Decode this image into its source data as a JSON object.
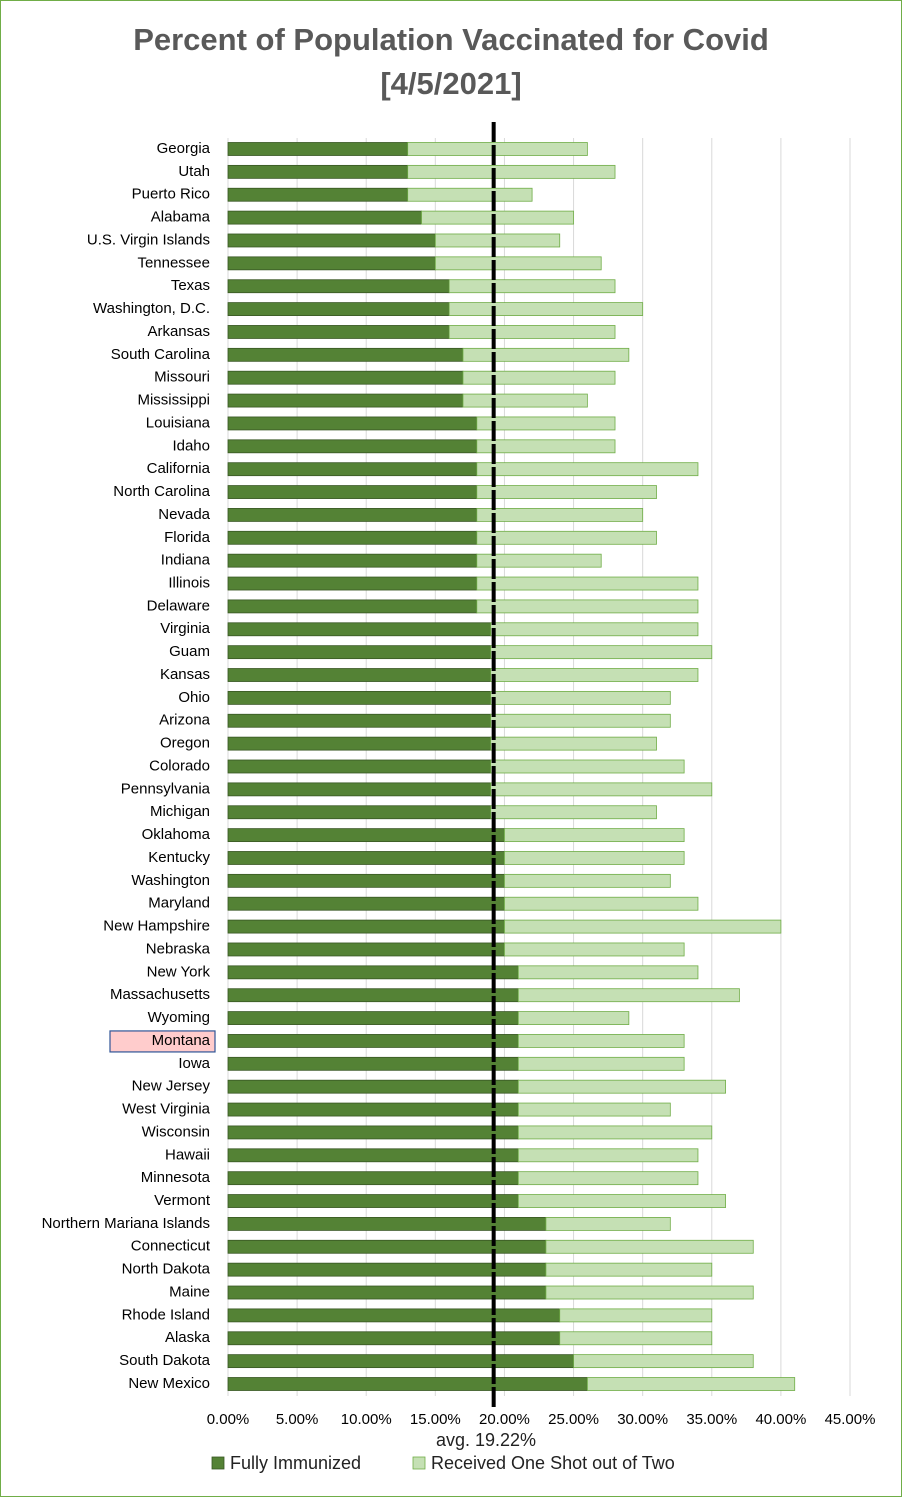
{
  "chart_data": {
    "type": "stacked_barh",
    "title": "Percent of Population Vaccinated for Covid",
    "subtitle": "[4/5/2021]",
    "categories": [
      "Georgia",
      "Utah",
      "Puerto Rico",
      "Alabama",
      "U.S. Virgin Islands",
      "Tennessee",
      "Texas",
      "Washington, D.C.",
      "Arkansas",
      "South Carolina",
      "Missouri",
      "Mississippi",
      "Louisiana",
      "Idaho",
      "California",
      "North Carolina",
      "Nevada",
      "Florida",
      "Indiana",
      "Illinois",
      "Delaware",
      "Virginia",
      "Guam",
      "Kansas",
      "Ohio",
      "Arizona",
      "Oregon",
      "Colorado",
      "Pennsylvania",
      "Michigan",
      "Oklahoma",
      "Kentucky",
      "Washington",
      "Maryland",
      "New Hampshire",
      "Nebraska",
      "New York",
      "Massachusetts",
      "Wyoming",
      "Montana",
      "Iowa",
      "New Jersey",
      "West Virginia",
      "Wisconsin",
      "Hawaii",
      "Minnesota",
      "Vermont",
      "Northern Mariana Islands",
      "Connecticut",
      "North Dakota",
      "Maine",
      "Rhode Island",
      "Alaska",
      "South Dakota",
      "New Mexico"
    ],
    "series": [
      {
        "name": "Fully Immunized",
        "color": "#548235",
        "edge": "#385723",
        "values": [
          13,
          13,
          13,
          14,
          15,
          15,
          16,
          16,
          16,
          17,
          17,
          17,
          18,
          18,
          18,
          18,
          18,
          18,
          18,
          18,
          18,
          19,
          19,
          19,
          19,
          19,
          19,
          19,
          19,
          19,
          20,
          20,
          20,
          20,
          20,
          20,
          21,
          21,
          21,
          21,
          21,
          21,
          21,
          21,
          21,
          21,
          21,
          23,
          23,
          23,
          23,
          24,
          24,
          25,
          26
        ]
      },
      {
        "name": "Received One Shot out of Two",
        "color": "#c5e0b4",
        "edge": "#70ad47",
        "values": [
          13,
          15,
          9,
          11,
          9,
          12,
          12,
          14,
          12,
          12,
          11,
          9,
          10,
          10,
          16,
          13,
          12,
          13,
          9,
          16,
          16,
          15,
          16,
          15,
          13,
          13,
          12,
          14,
          16,
          12,
          13,
          13,
          12,
          14,
          20,
          13,
          13,
          16,
          8,
          12,
          12,
          15,
          11,
          14,
          13,
          13,
          15,
          9,
          15,
          12,
          15,
          11,
          11,
          13,
          15
        ]
      }
    ],
    "highlight": "Montana",
    "average": 19.22,
    "average_label": "avg. 19.22%",
    "xlim": [
      0,
      45
    ],
    "xticks": [
      {
        "value": 0,
        "label": "0.00%"
      },
      {
        "value": 5,
        "label": "5.00%"
      },
      {
        "value": 10,
        "label": "10.00%"
      },
      {
        "value": 15,
        "label": "15.00%"
      },
      {
        "value": 20,
        "label": "20.00%"
      },
      {
        "value": 25,
        "label": "25.00%"
      },
      {
        "value": 30,
        "label": "30.00%"
      },
      {
        "value": 35,
        "label": "35.00%"
      },
      {
        "value": 40,
        "label": "40.00%"
      },
      {
        "value": 45,
        "label": "45.00%"
      }
    ],
    "grid": true,
    "legend": "bottom"
  }
}
